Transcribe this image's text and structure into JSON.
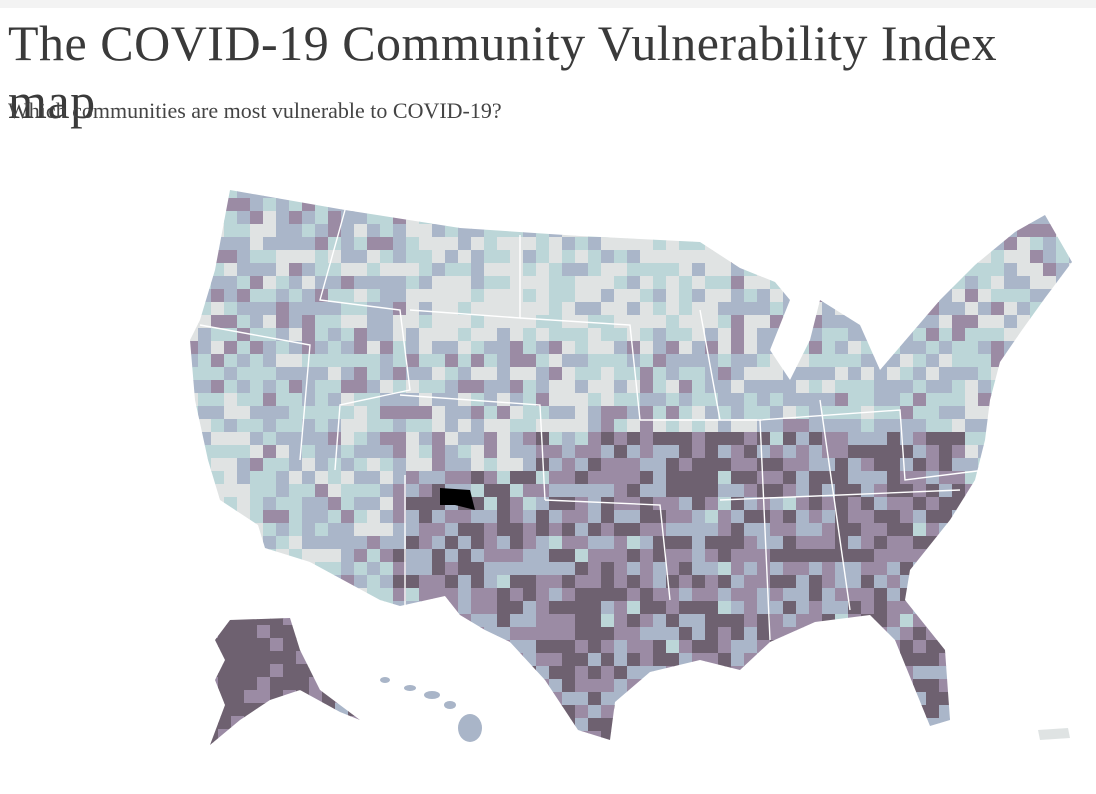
{
  "header": {
    "title": "The COVID-19 Community Vulnerability Index map",
    "subtitle": "Which communities are most vulnerable to COVID-19?"
  }
}
